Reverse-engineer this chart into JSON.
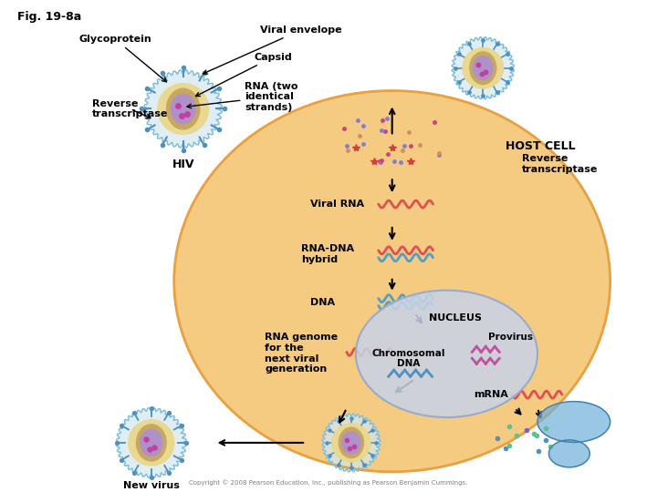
{
  "title": "Fig. 19-8a",
  "bg_color": "#ffffff",
  "host_cell_color": "#f5c87a",
  "host_cell_edge": "#e8a040",
  "nucleus_color": "#c8d4e8",
  "nucleus_edge": "#9aaac8",
  "hiv_outer_color": "#f0f0a0",
  "hiv_inner_color": "#c8a0d0",
  "labels": {
    "fig": "Fig. 19-8a",
    "glycoprotein": "Glycoprotein",
    "viral_envelope": "Viral envelope",
    "capsid": "Capsid",
    "rna": "RNA (two\nidentical\nstrands)",
    "reverse_trans_left": "Reverse\ntranscriptase",
    "hiv": "HIV",
    "host_cell": "HOST CELL",
    "reverse_trans_right": "Reverse\ntranscriptase",
    "viral_rna": "Viral RNA",
    "rna_dna": "RNA-DNA\nhybrid",
    "dna": "DNA",
    "nucleus": "NUCLEUS",
    "chromosomal_dna": "Chromosomal\nDNA",
    "provirus": "Provirus",
    "rna_genome": "RNA genome\nfor the\nnext viral\ngeneration",
    "mrna": "mRNA",
    "new_virus": "New virus"
  },
  "wavy_colors": {
    "rna": "#e05050",
    "rna_dna_top": "#e05050",
    "rna_dna_bot": "#50a0c8",
    "dna_top": "#50a0c8",
    "dna_bot": "#50a0c8",
    "chromosomal": "#50a0c8",
    "provirus": "#c05080",
    "rna_genome": "#e05050",
    "mrna": "#e05050"
  }
}
